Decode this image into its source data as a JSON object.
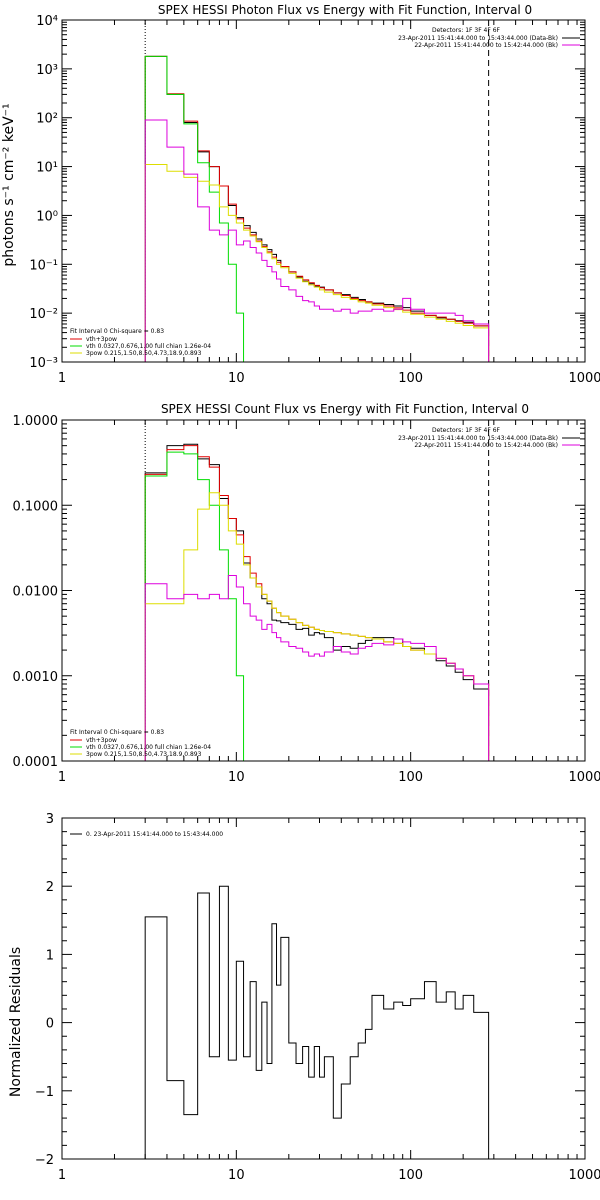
{
  "chart_data": [
    {
      "type": "line",
      "title": "SPEX HESSI Photon Flux vs Energy with Fit Function, Interval 0",
      "ylabel": "photons s⁻¹ cm⁻² keV⁻¹",
      "xlabel": "",
      "xscale": "log",
      "yscale": "log",
      "xlim": [
        1,
        1000
      ],
      "ylim": [
        0.001,
        10000
      ],
      "x_ticks": [
        "1",
        "10",
        "100",
        "1000"
      ],
      "y_ticks": [
        "10⁻³",
        "10⁻²",
        "10⁻¹",
        "10⁰",
        "10¹",
        "10²",
        "10³",
        "10⁴"
      ],
      "vlines": [
        {
          "x": 3,
          "style": "dotted"
        },
        {
          "x": 280,
          "style": "dashed"
        }
      ],
      "info": {
        "detectors": "Detectors: 1F 3F 4F 6F",
        "time_line_1": "23-Apr-2011 15:41:44.000 to 15:43:44.000 (Data-Bk)",
        "time_line_2": "22-Apr-2011 15:41:44.000 to 15:42:44.000 (Bk)"
      },
      "legend_title": "Fit Interval 0   Chi-square = 0.83",
      "legend": [
        {
          "label": "vth+3pow",
          "color": "#e00000"
        },
        {
          "label": "vth 0.0327,0.676,1.00  full chian 1.26e-04",
          "color": "#00dd00"
        },
        {
          "label": "3pow 0.215,1.50,8.50,4.73,18.9,0.893",
          "color": "#dddd00"
        }
      ],
      "series": [
        {
          "key": "data",
          "color": "#000000",
          "edges": [
            3,
            4,
            5,
            6,
            7,
            8,
            9,
            10,
            11,
            12,
            13,
            14,
            15,
            16,
            17,
            18,
            20,
            22,
            24,
            26,
            28,
            30,
            32,
            36,
            40,
            45,
            50,
            55,
            60,
            70,
            80,
            90,
            100,
            120,
            140,
            160,
            180,
            200,
            230,
            280
          ],
          "values": [
            1800,
            300,
            80,
            20,
            10,
            4,
            1.6,
            0.9,
            0.62,
            0.45,
            0.33,
            0.25,
            0.2,
            0.16,
            0.12,
            0.09,
            0.07,
            0.055,
            0.045,
            0.04,
            0.036,
            0.034,
            0.03,
            0.026,
            0.024,
            0.021,
            0.019,
            0.017,
            0.016,
            0.015,
            0.014,
            0.013,
            0.011,
            0.009,
            0.008,
            0.0075,
            0.007,
            0.0065,
            0.0055
          ]
        },
        {
          "key": "total",
          "color": "#e00000",
          "edges": [
            3,
            4,
            5,
            6,
            7,
            8,
            9,
            10,
            11,
            12,
            13,
            14,
            15,
            16,
            17,
            18,
            20,
            22,
            24,
            26,
            28,
            30,
            32,
            36,
            40,
            45,
            50,
            55,
            60,
            70,
            80,
            90,
            100,
            120,
            140,
            160,
            180,
            200,
            230,
            280
          ],
          "values": [
            1800,
            310,
            85,
            21,
            10,
            4,
            1.7,
            0.85,
            0.55,
            0.4,
            0.3,
            0.23,
            0.18,
            0.14,
            0.11,
            0.09,
            0.07,
            0.057,
            0.048,
            0.042,
            0.037,
            0.033,
            0.03,
            0.026,
            0.023,
            0.02,
            0.018,
            0.017,
            0.0155,
            0.014,
            0.0128,
            0.0115,
            0.01,
            0.009,
            0.0083,
            0.0075,
            0.0068,
            0.0062,
            0.0055
          ]
        },
        {
          "key": "thermal",
          "color": "#00dd00",
          "edges": [
            3,
            4,
            5,
            6,
            7,
            8,
            9,
            10,
            11
          ],
          "values": [
            1800,
            300,
            75,
            12,
            3,
            0.7,
            0.1,
            0.01
          ]
        },
        {
          "key": "nonthermal",
          "color": "#dddd00",
          "edges": [
            3,
            4,
            5,
            6,
            7,
            8,
            9,
            10,
            11,
            12,
            13,
            14,
            15,
            16,
            17,
            18,
            20,
            22,
            24,
            26,
            28,
            30,
            32,
            36,
            40,
            45,
            50,
            55,
            60,
            70,
            80,
            90,
            100,
            120,
            140,
            160,
            180,
            200,
            230,
            280
          ],
          "values": [
            11,
            8,
            6,
            5,
            4.2,
            1.5,
            1.0,
            0.7,
            0.5,
            0.38,
            0.29,
            0.22,
            0.17,
            0.13,
            0.1,
            0.085,
            0.065,
            0.052,
            0.044,
            0.038,
            0.034,
            0.03,
            0.027,
            0.024,
            0.021,
            0.019,
            0.017,
            0.016,
            0.0145,
            0.013,
            0.0118,
            0.0105,
            0.0095,
            0.0083,
            0.0075,
            0.0068,
            0.0062,
            0.0056,
            0.005
          ]
        },
        {
          "key": "background",
          "color": "#dd00dd",
          "edges": [
            3,
            4,
            5,
            6,
            7,
            8,
            9,
            10,
            11,
            12,
            13,
            14,
            15,
            16,
            17,
            18,
            20,
            22,
            24,
            26,
            28,
            30,
            32,
            36,
            40,
            45,
            50,
            55,
            60,
            70,
            80,
            90,
            100,
            120,
            140,
            160,
            180,
            200,
            230,
            280
          ],
          "values": [
            90,
            25,
            7,
            1.5,
            0.5,
            0.4,
            0.5,
            0.25,
            0.3,
            0.22,
            0.17,
            0.12,
            0.09,
            0.07,
            0.05,
            0.035,
            0.03,
            0.022,
            0.018,
            0.017,
            0.014,
            0.012,
            0.012,
            0.011,
            0.012,
            0.01,
            0.011,
            0.011,
            0.012,
            0.011,
            0.012,
            0.02,
            0.012,
            0.01,
            0.01,
            0.01,
            0.009,
            0.007,
            0.006
          ]
        }
      ]
    },
    {
      "type": "line",
      "title": "SPEX HESSI Count Flux vs Energy with Fit Function, Interval 0",
      "ylabel": "",
      "xlabel": "",
      "xscale": "log",
      "yscale": "log",
      "xlim": [
        1,
        1000
      ],
      "ylim": [
        0.0001,
        1.0
      ],
      "x_ticks": [
        "1",
        "10",
        "100",
        "1000"
      ],
      "y_ticks": [
        "0.0001",
        "0.0010",
        "0.0100",
        "0.1000",
        "1.0000"
      ],
      "vlines": [
        {
          "x": 3,
          "style": "dotted"
        },
        {
          "x": 280,
          "style": "dashed"
        }
      ],
      "info": {
        "detectors": "Detectors: 1F 3F 4F 6F",
        "time_line_1": "23-Apr-2011 15:41:44.000 to 15:43:44.000 (Data-Bk)",
        "time_line_2": "22-Apr-2011 15:41:44.000 to 15:42:44.000 (Bk)"
      },
      "legend_title": "Fit Interval 0   Chi-square = 0.83",
      "legend": [
        {
          "label": "vth+3pow",
          "color": "#e00000"
        },
        {
          "label": "vth 0.0327,0.676,1.00  full chian 1.26e-04",
          "color": "#00dd00"
        },
        {
          "label": "3pow 0.215,1.50,8.50,4.73,18.9,0.893",
          "color": "#dddd00"
        }
      ],
      "series": [
        {
          "key": "data",
          "color": "#000000",
          "edges": [
            3,
            4,
            5,
            6,
            7,
            8,
            9,
            10,
            11,
            12,
            13,
            14,
            15,
            16,
            17,
            18,
            20,
            22,
            24,
            26,
            28,
            30,
            32,
            36,
            40,
            45,
            50,
            55,
            60,
            70,
            80,
            90,
            100,
            120,
            140,
            160,
            180,
            200,
            230,
            280
          ],
          "values": [
            0.24,
            0.5,
            0.52,
            0.35,
            0.3,
            0.12,
            0.07,
            0.05,
            0.021,
            0.014,
            0.011,
            0.008,
            0.007,
            0.0045,
            0.0044,
            0.0042,
            0.004,
            0.0035,
            0.0036,
            0.003,
            0.0032,
            0.0031,
            0.0028,
            0.002,
            0.0022,
            0.0021,
            0.0024,
            0.0026,
            0.0028,
            0.0028,
            0.0027,
            0.0022,
            0.0021,
            0.0018,
            0.0015,
            0.0013,
            0.0011,
            0.0009,
            0.0007
          ]
        },
        {
          "key": "total",
          "color": "#e00000",
          "edges": [
            3,
            4,
            5,
            6,
            7,
            8,
            9,
            10,
            11,
            12,
            13,
            14,
            15,
            16,
            17,
            18,
            20,
            22,
            24,
            26,
            28,
            30,
            32,
            36,
            40,
            45,
            50,
            55,
            60,
            70,
            80,
            90,
            100,
            120,
            140,
            160,
            180,
            200,
            230,
            280
          ],
          "values": [
            0.23,
            0.45,
            0.5,
            0.37,
            0.28,
            0.13,
            0.07,
            0.045,
            0.025,
            0.016,
            0.012,
            0.009,
            0.0075,
            0.0062,
            0.0055,
            0.005,
            0.0046,
            0.0042,
            0.0039,
            0.0037,
            0.0035,
            0.0034,
            0.0033,
            0.0032,
            0.0031,
            0.003,
            0.0029,
            0.0028,
            0.0027,
            0.0025,
            0.0024,
            0.0022,
            0.002,
            0.0018,
            0.0016,
            0.0014,
            0.0012,
            0.001,
            0.0008
          ]
        },
        {
          "key": "thermal",
          "color": "#00dd00",
          "edges": [
            3,
            4,
            5,
            6,
            7,
            8,
            9,
            10,
            11
          ],
          "values": [
            0.22,
            0.42,
            0.4,
            0.2,
            0.1,
            0.03,
            0.008,
            0.001
          ]
        },
        {
          "key": "nonthermal",
          "color": "#dddd00",
          "edges": [
            3,
            4,
            5,
            6,
            7,
            8,
            9,
            10,
            11,
            12,
            13,
            14,
            15,
            16,
            17,
            18,
            20,
            22,
            24,
            26,
            28,
            30,
            32,
            36,
            40,
            45,
            50,
            55,
            60,
            70,
            80,
            90,
            100,
            120,
            140,
            160,
            180,
            200,
            230,
            280
          ],
          "values": [
            0.007,
            0.007,
            0.03,
            0.09,
            0.14,
            0.1,
            0.05,
            0.035,
            0.02,
            0.014,
            0.011,
            0.009,
            0.0075,
            0.0062,
            0.0055,
            0.005,
            0.0046,
            0.0042,
            0.0039,
            0.0037,
            0.0035,
            0.0034,
            0.0033,
            0.0032,
            0.0031,
            0.003,
            0.0029,
            0.0028,
            0.0027,
            0.0025,
            0.0024,
            0.0022,
            0.002,
            0.0018,
            0.0016,
            0.0014,
            0.0012,
            0.001,
            0.0008
          ]
        },
        {
          "key": "background",
          "color": "#dd00dd",
          "edges": [
            3,
            4,
            5,
            6,
            7,
            8,
            9,
            10,
            11,
            12,
            13,
            14,
            15,
            16,
            17,
            18,
            20,
            22,
            24,
            26,
            28,
            30,
            32,
            36,
            40,
            45,
            50,
            55,
            60,
            70,
            80,
            90,
            100,
            120,
            140,
            160,
            180,
            200,
            230,
            280
          ],
          "values": [
            0.012,
            0.008,
            0.009,
            0.008,
            0.009,
            0.008,
            0.015,
            0.011,
            0.007,
            0.005,
            0.0045,
            0.0035,
            0.004,
            0.0032,
            0.0028,
            0.0025,
            0.0022,
            0.0021,
            0.0019,
            0.0017,
            0.0018,
            0.0017,
            0.0019,
            0.0022,
            0.0019,
            0.0018,
            0.0021,
            0.0022,
            0.0024,
            0.0023,
            0.0027,
            0.0025,
            0.0024,
            0.0022,
            0.0016,
            0.0014,
            0.0012,
            0.001,
            0.0008
          ]
        }
      ]
    },
    {
      "type": "line",
      "title": "",
      "ylabel": "Normalized Residuals",
      "xlabel": "",
      "xscale": "log",
      "yscale": "linear",
      "xlim": [
        1,
        1000
      ],
      "ylim": [
        -2,
        3
      ],
      "x_ticks": [
        "1",
        "10",
        "100",
        "1000"
      ],
      "y_ticks": [
        "−2",
        "−1",
        "0",
        "1",
        "2",
        "3"
      ],
      "legend": [
        {
          "label": "0. 23-Apr-2011 15:41:44.000 to 15:43:44.000",
          "color": "#000000"
        }
      ],
      "series": [
        {
          "key": "residuals",
          "color": "#000000",
          "edges": [
            3,
            4,
            5,
            6,
            7,
            8,
            9,
            10,
            11,
            12,
            13,
            14,
            15,
            16,
            17,
            18,
            20,
            22,
            24,
            26,
            28,
            30,
            32,
            36,
            40,
            45,
            50,
            55,
            60,
            70,
            80,
            90,
            100,
            120,
            140,
            160,
            180,
            200,
            230,
            280
          ],
          "values": [
            1.55,
            -0.85,
            -1.35,
            1.9,
            -0.5,
            2.0,
            -0.55,
            0.9,
            -0.5,
            0.6,
            -0.7,
            0.3,
            -0.6,
            1.45,
            0.55,
            1.25,
            -0.3,
            -0.6,
            -0.35,
            -0.8,
            -0.35,
            -0.8,
            -0.5,
            -1.4,
            -0.9,
            -0.5,
            -0.3,
            -0.1,
            0.4,
            0.2,
            0.3,
            0.25,
            0.35,
            0.6,
            0.3,
            0.45,
            0.2,
            0.4,
            0.15
          ]
        }
      ]
    }
  ]
}
